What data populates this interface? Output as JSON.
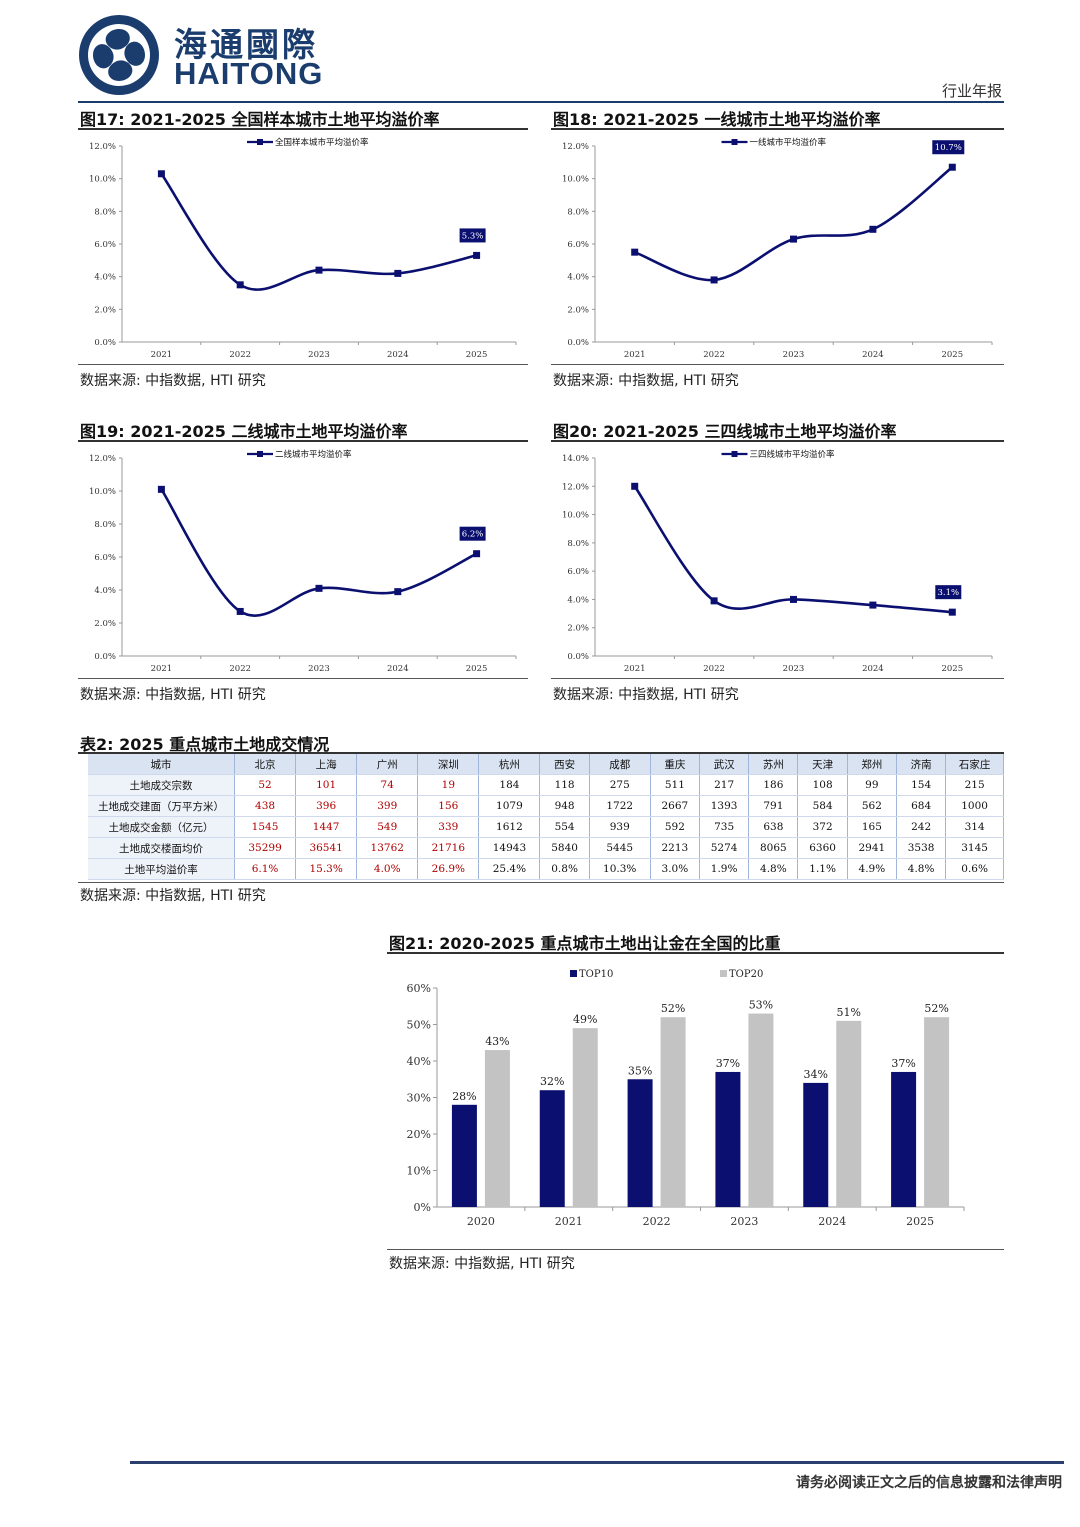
{
  "header": {
    "logo_cn": "海通國際",
    "logo_en": "HAITONG",
    "report_type": "行业年报"
  },
  "figures": [
    {
      "title": "图17:  2021-2025 全国样本城市土地平均溢价率",
      "source": "数据来源:  中指数据, HTI 研究",
      "chart_data": {
        "type": "line",
        "x": [
          "2021",
          "2022",
          "2023",
          "2024",
          "2025"
        ],
        "series": [
          {
            "name": "全国样本城市平均溢价率",
            "values": [
              10.3,
              3.5,
              4.4,
              4.2,
              5.3
            ]
          }
        ],
        "ylim": [
          0,
          12
        ],
        "yticks": [
          "0.0%",
          "2.0%",
          "4.0%",
          "6.0%",
          "8.0%",
          "10.0%",
          "12.0%"
        ],
        "annotation": "5.3%",
        "legend": "top"
      }
    },
    {
      "title": "图18:  2021-2025 一线城市土地平均溢价率",
      "source": "数据来源:  中指数据, HTI 研究",
      "chart_data": {
        "type": "line",
        "x": [
          "2021",
          "2022",
          "2023",
          "2024",
          "2025"
        ],
        "series": [
          {
            "name": "一线城市平均溢价率",
            "values": [
              5.5,
              3.8,
              6.3,
              6.9,
              10.7
            ]
          }
        ],
        "ylim": [
          0,
          12
        ],
        "yticks": [
          "0.0%",
          "2.0%",
          "4.0%",
          "6.0%",
          "8.0%",
          "10.0%",
          "12.0%"
        ],
        "annotation": "10.7%",
        "legend": "top"
      }
    },
    {
      "title": "图19:  2021-2025 二线城市土地平均溢价率",
      "source": "数据来源:  中指数据, HTI 研究",
      "chart_data": {
        "type": "line",
        "x": [
          "2021",
          "2022",
          "2023",
          "2024",
          "2025"
        ],
        "series": [
          {
            "name": "二线城市平均溢价率",
            "values": [
              10.1,
              2.7,
              4.1,
              3.9,
              6.2
            ]
          }
        ],
        "ylim": [
          0,
          12
        ],
        "yticks": [
          "0.0%",
          "2.0%",
          "4.0%",
          "6.0%",
          "8.0%",
          "10.0%",
          "12.0%"
        ],
        "annotation": "6.2%",
        "legend": "top"
      }
    },
    {
      "title": "图20:  2021-2025 三四线城市土地平均溢价率",
      "source": "数据来源:  中指数据, HTI 研究",
      "chart_data": {
        "type": "line",
        "x": [
          "2021",
          "2022",
          "2023",
          "2024",
          "2025"
        ],
        "series": [
          {
            "name": "三四线城市平均溢价率",
            "values": [
              12.0,
              3.9,
              4.0,
              3.6,
              3.1
            ]
          }
        ],
        "ylim": [
          0,
          14
        ],
        "yticks": [
          "0.0%",
          "2.0%",
          "4.0%",
          "6.0%",
          "8.0%",
          "10.0%",
          "12.0%",
          "14.0%"
        ],
        "annotation": "3.1%",
        "legend": "top"
      }
    }
  ],
  "table": {
    "title": "表2:  2025 重点城市土地成交情况",
    "source": "数据来源:  中指数据, HTI 研究",
    "header": [
      "城市",
      "北京",
      "上海",
      "广州",
      "深圳",
      "杭州",
      "西安",
      "成都",
      "重庆",
      "武汉",
      "苏州",
      "天津",
      "郑州",
      "济南",
      "石家庄"
    ],
    "rows": [
      [
        "土地成交宗数",
        "52",
        "101",
        "74",
        "19",
        "184",
        "118",
        "275",
        "511",
        "217",
        "186",
        "108",
        "99",
        "154",
        "215"
      ],
      [
        "土地成交建面（万平方米）",
        "438",
        "396",
        "399",
        "156",
        "1079",
        "948",
        "1722",
        "2667",
        "1393",
        "791",
        "584",
        "562",
        "684",
        "1000"
      ],
      [
        "土地成交金额（亿元）",
        "1545",
        "1447",
        "549",
        "339",
        "1612",
        "554",
        "939",
        "592",
        "735",
        "638",
        "372",
        "165",
        "242",
        "314"
      ],
      [
        "土地成交楼面均价",
        "35299",
        "36541",
        "13762",
        "21716",
        "14943",
        "5840",
        "5445",
        "2213",
        "5274",
        "8065",
        "6360",
        "2941",
        "3538",
        "3145"
      ],
      [
        "土地平均溢价率",
        "6.1%",
        "15.3%",
        "4.0%",
        "26.9%",
        "25.4%",
        "0.8%",
        "10.3%",
        "3.0%",
        "1.9%",
        "4.8%",
        "1.1%",
        "4.9%",
        "4.8%",
        "0.6%"
      ]
    ],
    "highlight_color": "#b00000"
  },
  "figure21": {
    "title": "图21:  2020-2025 重点城市土地出让金在全国的比重",
    "source": "数据来源:  中指数据, HTI 研究",
    "chart_data": {
      "type": "bar",
      "categories": [
        "2020",
        "2021",
        "2022",
        "2023",
        "2024",
        "2025"
      ],
      "series": [
        {
          "name": "TOP10",
          "values": [
            28,
            32,
            35,
            37,
            34,
            37
          ],
          "labels": [
            "28%",
            "32%",
            "35%",
            "37%",
            "34%",
            "37%"
          ],
          "color": "#0b1070"
        },
        {
          "name": "TOP20",
          "values": [
            43,
            49,
            52,
            53,
            51,
            52
          ],
          "labels": [
            "43%",
            "49%",
            "52%",
            "53%",
            "51%",
            "52%"
          ],
          "color": "#c3c3c3"
        }
      ],
      "ylim": [
        0,
        60
      ],
      "yticks": [
        "0%",
        "10%",
        "20%",
        "30%",
        "40%",
        "50%",
        "60%"
      ],
      "legend": "top"
    }
  },
  "colors": {
    "navy": "#0b1070",
    "brand": "#1b3d6e"
  },
  "footer": "请务必阅读正文之后的信息披露和法律声明"
}
